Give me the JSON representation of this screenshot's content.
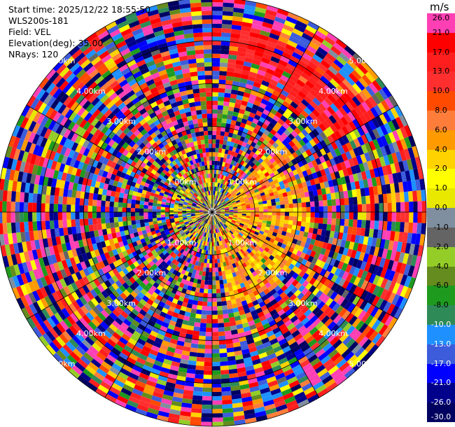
{
  "info": {
    "start_time": "Start time: 2025/12/22 18:55:50",
    "instrument": "WLS200s-181",
    "field": "Field: VEL",
    "elevation": "Elevation(deg): 35.00",
    "nrays": "NRays: 120"
  },
  "colorbar": {
    "unit": "m/s",
    "levels": [
      "26.0",
      "21.0",
      "17.0",
      "13.0",
      "10.0",
      "8.0",
      "6.0",
      "4.0",
      "2.0",
      "1.0",
      "0.0",
      "-1.0",
      "-2.0",
      "-4.0",
      "-6.0",
      "-8.0",
      "-10.0",
      "-13.0",
      "-17.0",
      "-21.0",
      "-26.0",
      "-30.0"
    ],
    "colors": [
      "#ff40b4",
      "#ff0000",
      "#ff1e1e",
      "#ff2f2f",
      "#ff4a00",
      "#ff7d3a",
      "#ff9a00",
      "#ffd200",
      "#ffff00",
      "#e8e800",
      "#7f8f9f",
      "#646464",
      "#94cd28",
      "#648c1e",
      "#1e9b1e",
      "#2e8b57",
      "#1e90ff",
      "#3c5cdc",
      "#0000ff",
      "#00008b",
      "#000060"
    ],
    "text_white_from": -10.0
  },
  "range_labels": [
    "1.00km",
    "2.00km",
    "3.00km",
    "4.00km",
    "5.00km"
  ],
  "chart_data": {
    "type": "heatmap",
    "projection": "polar PPI",
    "field": "VEL",
    "units": "m/s",
    "elevation_deg": 35.0,
    "n_rays": 120,
    "rings_km": [
      1,
      2,
      3,
      4,
      5
    ],
    "max_range_km": 5.0,
    "color_range": [
      -30.0,
      26.0
    ]
  }
}
